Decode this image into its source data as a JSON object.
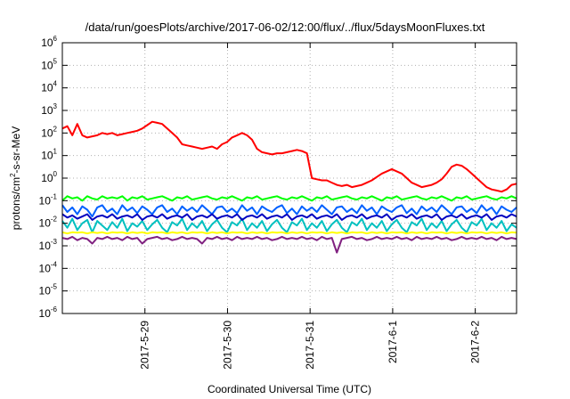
{
  "chart_data": {
    "type": "line",
    "title": "/data/run/goesPlots/archive/2017-06-02/12:00/flux/../flux/5daysMoonFluxes.txt",
    "xlabel": "Coordinated Universal Time (UTC)",
    "ylabel": "protons/cm2-s-sr-MeV",
    "ylabel_parts": {
      "pre": "protons/cm",
      "sup": "2",
      "post": "-s-sr-MeV"
    },
    "yscale": "log",
    "ylim_exp": [
      -6,
      6
    ],
    "ytick_exponents": [
      "-6",
      "-5",
      "-4",
      "-3",
      "-2",
      "-1",
      "0",
      "1",
      "2",
      "3",
      "4",
      "5",
      "6"
    ],
    "ytick_base": "10",
    "xlim_days": [
      0,
      5.5
    ],
    "x_ticks": [
      {
        "label": "2017-5-29",
        "day": 1.0
      },
      {
        "label": "2017-5-30",
        "day": 2.0
      },
      {
        "label": "2017-5-31",
        "day": 3.0
      },
      {
        "label": "2017-6-1",
        "day": 4.0
      },
      {
        "label": "2017-6-2",
        "day": 5.0
      }
    ],
    "grid": true,
    "series": [
      {
        "color": "#ff0000",
        "log10_values": [
          2.2,
          2.3,
          1.9,
          2.4,
          1.9,
          1.8,
          1.85,
          1.9,
          2.0,
          1.95,
          2.0,
          1.9,
          1.95,
          2.0,
          2.05,
          2.1,
          2.2,
          2.35,
          2.5,
          2.45,
          2.4,
          2.2,
          2.0,
          1.8,
          1.5,
          1.45,
          1.4,
          1.35,
          1.3,
          1.35,
          1.4,
          1.3,
          1.5,
          1.6,
          1.8,
          1.9,
          2.0,
          1.9,
          1.7,
          1.3,
          1.15,
          1.1,
          1.05,
          1.1,
          1.1,
          1.15,
          1.2,
          1.25,
          1.2,
          1.1,
          0.0,
          -0.05,
          -0.1,
          -0.1,
          -0.2,
          -0.3,
          -0.35,
          -0.3,
          -0.4,
          -0.35,
          -0.3,
          -0.2,
          -0.1,
          0.05,
          0.2,
          0.3,
          0.4,
          0.3,
          0.2,
          0.0,
          -0.2,
          -0.3,
          -0.4,
          -0.35,
          -0.3,
          -0.2,
          -0.05,
          0.2,
          0.5,
          0.6,
          0.55,
          0.4,
          0.2,
          0.0,
          -0.2,
          -0.4,
          -0.5,
          -0.55,
          -0.6,
          -0.5,
          -0.3,
          -0.25
        ]
      },
      {
        "color": "#00ff00",
        "log10_values": [
          -1.0,
          -0.8,
          -0.9,
          -0.85,
          -1.0,
          -0.8,
          -0.9,
          -0.95,
          -0.8,
          -0.9,
          -0.85,
          -0.9,
          -0.8,
          -1.0,
          -0.85,
          -0.9,
          -0.8,
          -0.95,
          -0.9,
          -0.85,
          -0.8,
          -0.9,
          -1.0,
          -0.85,
          -0.9,
          -0.8,
          -0.95,
          -0.9,
          -0.85,
          -0.8,
          -0.9,
          -0.95,
          -0.85,
          -0.9,
          -0.8,
          -0.9,
          -1.0,
          -0.85,
          -0.9,
          -0.8,
          -0.95,
          -0.9,
          -0.85,
          -0.8,
          -0.9,
          -0.95,
          -0.85,
          -0.9,
          -0.8,
          -0.9,
          -1.0,
          -0.85,
          -0.9,
          -0.8,
          -0.95,
          -0.9,
          -0.85,
          -0.8,
          -0.9,
          -0.95,
          -0.85,
          -0.9,
          -0.8,
          -0.9,
          -1.0,
          -0.85,
          -0.9,
          -0.8,
          -0.95,
          -0.9,
          -0.85,
          -0.8,
          -0.9,
          -0.95,
          -0.85,
          -0.9,
          -0.8,
          -0.9,
          -1.0,
          -0.85,
          -0.9,
          -0.8,
          -0.95,
          -0.9,
          -0.85,
          -0.8,
          -0.9,
          -0.95,
          -0.85,
          -0.9,
          -0.8,
          -0.9
        ]
      },
      {
        "color": "#0060ff",
        "log10_values": [
          -1.2,
          -1.5,
          -1.3,
          -1.6,
          -1.25,
          -1.4,
          -1.7,
          -1.3,
          -1.2,
          -1.5,
          -1.35,
          -1.6,
          -1.2,
          -1.45,
          -1.3,
          -1.55,
          -1.25,
          -1.4,
          -1.6,
          -1.3,
          -1.2,
          -1.5,
          -1.35,
          -1.6,
          -1.25,
          -1.45,
          -1.3,
          -1.5,
          -1.2,
          -1.4,
          -1.6,
          -1.3,
          -1.25,
          -1.5,
          -1.35,
          -1.55,
          -1.2,
          -1.45,
          -1.3,
          -1.6,
          -1.25,
          -1.4,
          -1.5,
          -1.3,
          -1.2,
          -1.55,
          -1.35,
          -1.6,
          -1.25,
          -1.45,
          -1.3,
          -1.5,
          -1.2,
          -1.4,
          -1.6,
          -1.3,
          -1.25,
          -1.5,
          -1.35,
          -1.55,
          -1.2,
          -1.45,
          -1.3,
          -1.6,
          -1.25,
          -1.4,
          -1.5,
          -1.3,
          -1.2,
          -1.55,
          -1.35,
          -1.6,
          -1.25,
          -1.45,
          -1.3,
          -1.5,
          -1.2,
          -1.4,
          -1.6,
          -1.3,
          -1.25,
          -1.5,
          -1.35,
          -1.55,
          -1.2,
          -1.45,
          -1.3,
          -1.6,
          -1.25,
          -1.4,
          -1.5,
          -1.3
        ]
      },
      {
        "color": "#00c0c0",
        "log10_values": [
          -1.9,
          -2.2,
          -1.8,
          -2.3,
          -2.0,
          -1.85,
          -2.4,
          -1.9,
          -2.1,
          -2.3,
          -1.95,
          -2.2,
          -1.8,
          -2.35,
          -2.0,
          -2.15,
          -1.9,
          -2.3,
          -2.05,
          -1.85,
          -2.2,
          -2.4,
          -1.95,
          -2.1,
          -1.8,
          -2.3,
          -2.0,
          -2.2,
          -1.9,
          -2.35,
          -2.05,
          -1.85,
          -2.2,
          -2.4,
          -1.95,
          -2.1,
          -1.8,
          -2.3,
          -2.0,
          -2.2,
          -1.9,
          -2.35,
          -2.05,
          -1.85,
          -2.2,
          -2.4,
          -1.95,
          -2.1,
          -1.8,
          -2.3,
          -2.0,
          -2.2,
          -1.9,
          -2.35,
          -2.05,
          -1.85,
          -2.2,
          -2.4,
          -1.95,
          -2.1,
          -1.8,
          -2.3,
          -2.0,
          -2.2,
          -1.9,
          -2.35,
          -2.05,
          -1.85,
          -2.2,
          -2.4,
          -1.95,
          -2.1,
          -1.8,
          -2.3,
          -2.0,
          -2.2,
          -1.9,
          -2.35,
          -2.05,
          -1.85,
          -2.2,
          -2.4,
          -1.95,
          -2.1,
          -1.8,
          -2.3,
          -2.0,
          -2.2,
          -1.9,
          -2.35,
          -2.05,
          -2.2
        ]
      },
      {
        "color": "#0000c0",
        "log10_values": [
          -1.6,
          -1.75,
          -1.65,
          -1.8,
          -1.7,
          -1.6,
          -1.85,
          -1.7,
          -1.65,
          -1.75,
          -1.6,
          -1.8,
          -1.7,
          -1.65,
          -1.75,
          -1.6,
          -1.85,
          -1.7,
          -1.65,
          -1.75,
          -1.6,
          -1.8,
          -1.7,
          -1.65,
          -1.75,
          -1.6,
          -1.85,
          -1.7,
          -1.65,
          -1.75,
          -1.6,
          -1.8,
          -1.7,
          -1.65,
          -1.75,
          -1.6,
          -1.85,
          -1.7,
          -1.65,
          -1.75,
          -1.6,
          -1.8,
          -1.7,
          -1.65,
          -1.75,
          -1.6,
          -1.85,
          -1.7,
          -1.65,
          -1.75,
          -1.6,
          -1.8,
          -1.7,
          -1.65,
          -1.75,
          -1.6,
          -1.85,
          -1.7,
          -1.65,
          -1.75,
          -1.6,
          -1.8,
          -1.7,
          -1.65,
          -1.75,
          -1.6,
          -1.85,
          -1.7,
          -1.65,
          -1.75,
          -1.6,
          -1.8,
          -1.7,
          -1.65,
          -1.75,
          -1.6,
          -1.85,
          -1.7,
          -1.65,
          -1.75,
          -1.6,
          -1.8,
          -1.7,
          -1.65,
          -1.75,
          -1.6,
          -1.85,
          -1.7,
          -1.65,
          -1.75,
          -1.6,
          -1.7
        ]
      },
      {
        "color": "#ffff00",
        "log10_values": [
          -2.4,
          -2.45,
          -2.4,
          -2.42,
          -2.4,
          -2.45,
          -2.4,
          -2.43,
          -2.4,
          -2.45,
          -2.4,
          -2.42,
          -2.4,
          -2.45,
          -2.4,
          -2.43,
          -2.4,
          -2.45,
          -2.4,
          -2.42,
          -2.4,
          -2.45,
          -2.4,
          -2.43,
          -2.4,
          -2.45,
          -2.4,
          -2.42,
          -2.4,
          -2.45,
          -2.4,
          -2.43,
          -2.4,
          -2.45,
          -2.4,
          -2.42,
          -2.4,
          -2.45,
          -2.4,
          -2.43,
          -2.4,
          -2.45,
          -2.4,
          -2.42,
          -2.4,
          -2.45,
          -2.4,
          -2.43,
          -2.4,
          -2.45,
          -2.4,
          -2.42,
          -2.4,
          -2.45,
          -2.4,
          -2.43,
          -2.4,
          -2.45,
          -2.4,
          -2.42,
          -2.4,
          -2.45,
          -2.4,
          -2.43,
          -2.4,
          -2.45,
          -2.4,
          -2.42,
          -2.4,
          -2.45,
          -2.4,
          -2.43,
          -2.4,
          -2.45,
          -2.4,
          -2.42,
          -2.4,
          -2.45,
          -2.4,
          -2.43,
          -2.4,
          -2.45,
          -2.4,
          -2.42,
          -2.4,
          -2.45,
          -2.4,
          -2.43,
          -2.4,
          -2.45,
          -2.4,
          -2.42
        ]
      },
      {
        "color": "#802080",
        "log10_values": [
          -2.65,
          -2.7,
          -2.6,
          -2.75,
          -2.65,
          -2.7,
          -2.9,
          -2.65,
          -2.7,
          -2.6,
          -2.7,
          -2.65,
          -2.75,
          -2.6,
          -2.7,
          -2.65,
          -2.9,
          -2.7,
          -2.65,
          -2.6,
          -2.7,
          -2.65,
          -2.75,
          -2.7,
          -2.6,
          -2.7,
          -2.65,
          -2.7,
          -2.9,
          -2.65,
          -2.7,
          -2.6,
          -2.7,
          -2.65,
          -2.75,
          -2.6,
          -2.7,
          -2.65,
          -2.7,
          -2.6,
          -2.7,
          -2.65,
          -2.75,
          -2.7,
          -2.6,
          -2.7,
          -2.65,
          -2.7,
          -2.6,
          -2.7,
          -2.65,
          -2.75,
          -2.6,
          -2.7,
          -2.65,
          -3.3,
          -2.7,
          -2.65,
          -2.6,
          -2.7,
          -2.65,
          -2.75,
          -2.7,
          -2.6,
          -2.7,
          -2.65,
          -2.7,
          -2.6,
          -2.7,
          -2.65,
          -2.75,
          -2.6,
          -2.7,
          -2.65,
          -2.7,
          -2.6,
          -2.7,
          -2.65,
          -2.75,
          -2.7,
          -2.6,
          -2.7,
          -2.65,
          -2.7,
          -2.6,
          -2.7,
          -2.65,
          -2.75,
          -2.6,
          -2.7,
          -2.65,
          -2.7
        ]
      }
    ]
  }
}
